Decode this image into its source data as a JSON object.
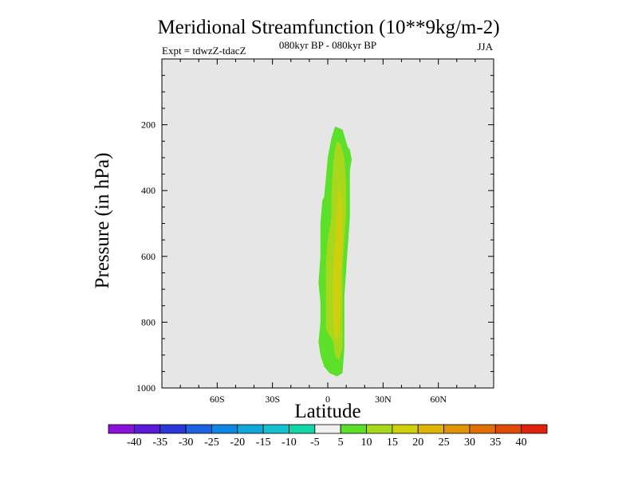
{
  "chart_data": {
    "type": "heatmap",
    "title": "Meridional Streamfunction (10**9kg/m-2)",
    "subtitle": "080kyr BP - 080kyr BP",
    "left_label": "Expt = tdwzZ-tdacZ",
    "right_label": "JJA",
    "xlabel": "Latitude",
    "ylabel": "Pressure (in hPa)",
    "xlim": [
      -90,
      90
    ],
    "ylim": [
      1000,
      0
    ],
    "x_ticks": [
      {
        "value": -60,
        "label": "60S"
      },
      {
        "value": -30,
        "label": "30S"
      },
      {
        "value": 0,
        "label": "0"
      },
      {
        "value": 30,
        "label": "30N"
      },
      {
        "value": 60,
        "label": "60N"
      }
    ],
    "y_ticks": [
      {
        "value": 200,
        "label": "200"
      },
      {
        "value": 400,
        "label": "400"
      },
      {
        "value": 600,
        "label": "600"
      },
      {
        "value": 800,
        "label": "800"
      },
      {
        "value": 1000,
        "label": "1000"
      }
    ],
    "background_color": "#e6e6e6",
    "contour_fills": [
      {
        "level": "5 to 10",
        "color": "#5ce02a",
        "points": [
          [
            2,
            240
          ],
          [
            4,
            205
          ],
          [
            8,
            215
          ],
          [
            11,
            270
          ],
          [
            12,
            275
          ],
          [
            13,
            305
          ],
          [
            12,
            340
          ],
          [
            12,
            400
          ],
          [
            12,
            480
          ],
          [
            11,
            560
          ],
          [
            10,
            640
          ],
          [
            9,
            720
          ],
          [
            9,
            800
          ],
          [
            9,
            880
          ],
          [
            8,
            955
          ],
          [
            5,
            965
          ],
          [
            1,
            955
          ],
          [
            -2,
            935
          ],
          [
            -4,
            900
          ],
          [
            -5,
            860
          ],
          [
            -4,
            800
          ],
          [
            -4,
            740
          ],
          [
            -5,
            680
          ],
          [
            -4,
            600
          ],
          [
            -4,
            500
          ],
          [
            -3,
            430
          ],
          [
            -2,
            420
          ],
          [
            -1,
            360
          ],
          [
            0,
            300
          ]
        ]
      },
      {
        "level": "10 to 15",
        "color": "#a8d81c",
        "points": [
          [
            5,
            250
          ],
          [
            7,
            260
          ],
          [
            9,
            300
          ],
          [
            10,
            380
          ],
          [
            10,
            470
          ],
          [
            9,
            550
          ],
          [
            8,
            640
          ],
          [
            8,
            720
          ],
          [
            8,
            800
          ],
          [
            8,
            880
          ],
          [
            6,
            915
          ],
          [
            4,
            900
          ],
          [
            3,
            860
          ],
          [
            -1,
            820
          ],
          [
            -1,
            760
          ],
          [
            -1,
            680
          ],
          [
            -1,
            610
          ],
          [
            0,
            550
          ],
          [
            2,
            480
          ],
          [
            2,
            400
          ],
          [
            3,
            320
          ],
          [
            4,
            270
          ]
        ]
      },
      {
        "level": "15 to 20",
        "color": "#cfcf0e",
        "points": [
          [
            6,
            380
          ],
          [
            8,
            460
          ],
          [
            8,
            560
          ],
          [
            7,
            660
          ],
          [
            7,
            760
          ],
          [
            6,
            840
          ],
          [
            4,
            850
          ],
          [
            3,
            800
          ],
          [
            3,
            720
          ],
          [
            3,
            640
          ],
          [
            4,
            560
          ],
          [
            5,
            470
          ]
        ]
      }
    ],
    "colorbar": {
      "labels": [
        "-40",
        "-35",
        "-30",
        "-25",
        "-20",
        "-15",
        "-10",
        "-5",
        "5",
        "10",
        "15",
        "20",
        "25",
        "30",
        "35",
        "40"
      ],
      "colors": [
        "#8a12d8",
        "#5b1ad8",
        "#2c37d8",
        "#1a62e0",
        "#0f86e0",
        "#11a6da",
        "#12c0d0",
        "#12d5a8",
        "#f0f0f0",
        "#5ce02a",
        "#a8d81c",
        "#cfcf0e",
        "#e0b606",
        "#e09406",
        "#e07006",
        "#e04a06",
        "#e0220c"
      ]
    }
  }
}
